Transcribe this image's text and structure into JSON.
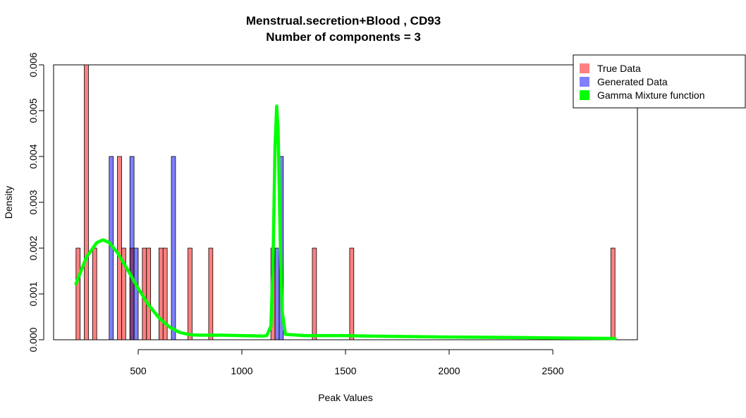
{
  "chart_data": {
    "type": "bar",
    "title": "Menstrual.secretion+Blood , CD93",
    "subtitle": "Number of components =  3",
    "xlabel": "Peak Values",
    "ylabel": "Density",
    "xlim": [
      200,
      2900
    ],
    "ylim": [
      0,
      0.006
    ],
    "x_ticks": [
      500,
      1000,
      1500,
      2000,
      2500
    ],
    "x_tick_labels": [
      "500",
      "1000",
      "1500",
      "2000",
      "2500"
    ],
    "y_ticks": [
      0,
      0.001,
      0.002,
      0.003,
      0.004,
      0.005,
      0.006
    ],
    "y_tick_labels": [
      "0.000",
      "0.001",
      "0.002",
      "0.003",
      "0.004",
      "0.005",
      "0.006"
    ],
    "bin_width": 20,
    "legend": {
      "position": "top-right",
      "entries": [
        {
          "label": "True Data",
          "color": "#ff8080"
        },
        {
          "label": "Generated Data",
          "color": "#8080ff"
        },
        {
          "label": "Gamma Mixture function",
          "color": "#00ff00"
        }
      ]
    },
    "series": [
      {
        "name": "True Data",
        "color": "#ff8080",
        "bins": [
          [
            200,
            0.002
          ],
          [
            240,
            0.006
          ],
          [
            280,
            0.002
          ],
          [
            400,
            0.004
          ],
          [
            420,
            0.002
          ],
          [
            460,
            0.002
          ],
          [
            520,
            0.002
          ],
          [
            540,
            0.002
          ],
          [
            600,
            0.002
          ],
          [
            620,
            0.002
          ],
          [
            740,
            0.002
          ],
          [
            840,
            0.002
          ],
          [
            1140,
            0.002
          ],
          [
            1340,
            0.002
          ],
          [
            1520,
            0.002
          ],
          [
            2780,
            0.002
          ]
        ]
      },
      {
        "name": "Generated Data",
        "color": "#8080ff",
        "bins": [
          [
            360,
            0.004
          ],
          [
            460,
            0.004
          ],
          [
            480,
            0.002
          ],
          [
            660,
            0.004
          ],
          [
            1160,
            0.002
          ],
          [
            1180,
            0.004
          ]
        ]
      },
      {
        "name": "Gamma Mixture function",
        "color": "#00ff00",
        "type": "line",
        "points": [
          [
            200,
            0.00122
          ],
          [
            250,
            0.0018
          ],
          [
            300,
            0.00212
          ],
          [
            330,
            0.00218
          ],
          [
            360,
            0.00212
          ],
          [
            400,
            0.0019
          ],
          [
            450,
            0.00152
          ],
          [
            500,
            0.00112
          ],
          [
            550,
            0.00076
          ],
          [
            600,
            0.00048
          ],
          [
            650,
            0.00028
          ],
          [
            700,
            0.00016
          ],
          [
            750,
            0.00011
          ],
          [
            800,
            0.0001
          ],
          [
            900,
            0.0001
          ],
          [
            1000,
            9e-05
          ],
          [
            1100,
            8e-05
          ],
          [
            1120,
            9e-05
          ],
          [
            1140,
            0.0003
          ],
          [
            1150,
            0.0016
          ],
          [
            1160,
            0.0042
          ],
          [
            1168,
            0.0051
          ],
          [
            1175,
            0.0046
          ],
          [
            1185,
            0.0022
          ],
          [
            1195,
            0.0006
          ],
          [
            1210,
            0.00012
          ],
          [
            1300,
            9e-05
          ],
          [
            1500,
            9e-05
          ],
          [
            1600,
            8e-05
          ],
          [
            2000,
            6e-05
          ],
          [
            2300,
            5e-05
          ],
          [
            2500,
            4e-05
          ],
          [
            2800,
            3e-05
          ]
        ]
      }
    ]
  }
}
